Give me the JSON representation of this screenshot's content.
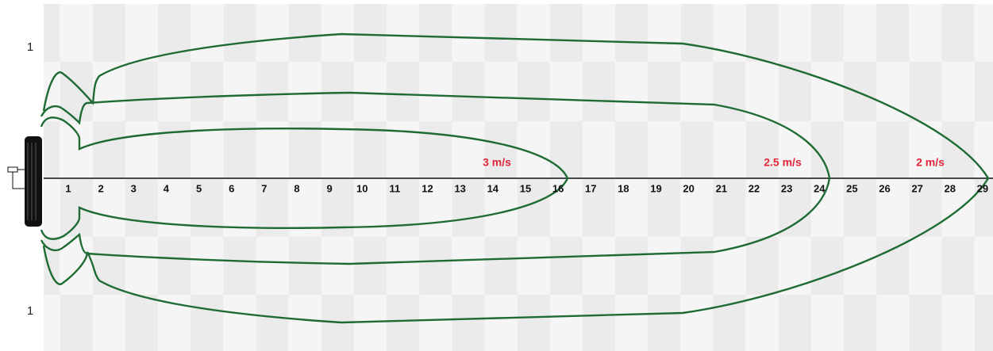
{
  "side_labels": {
    "top": "1",
    "bottom": "1"
  },
  "axis_labels": [
    "1",
    "2",
    "3",
    "4",
    "5",
    "6",
    "7",
    "8",
    "9",
    "10",
    "11",
    "12",
    "13",
    "14",
    "15",
    "16",
    "17",
    "18",
    "19",
    "20",
    "21",
    "22",
    "23",
    "24",
    "25",
    "26",
    "27",
    "28",
    "29"
  ],
  "contours": [
    {
      "label": "3 m/s"
    },
    {
      "label": "2.5 m/s"
    },
    {
      "label": "2 m/s"
    }
  ]
}
